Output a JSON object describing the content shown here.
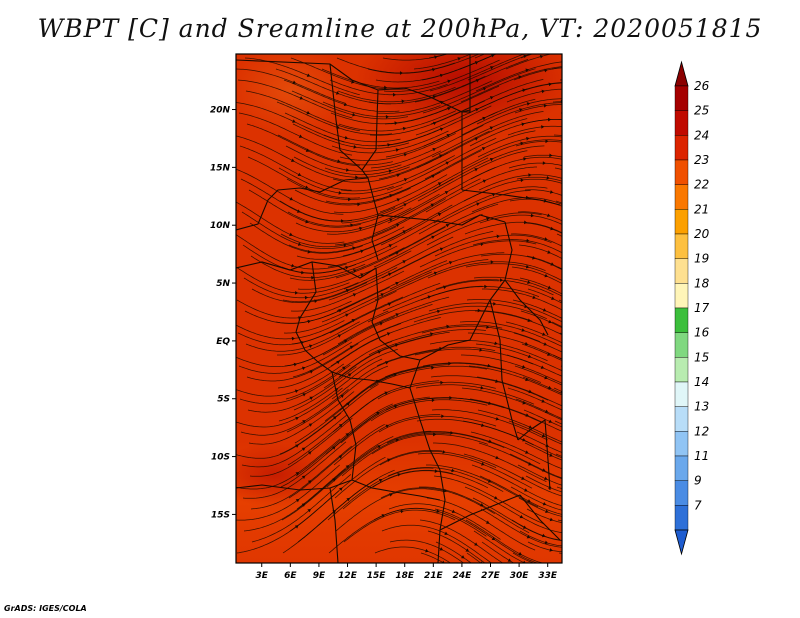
{
  "title": "WBPT [C] and Sreamline at 200hPa, VT: 2020051815",
  "footer": "GrADS: IGES/COLA",
  "axes": {
    "lon_labels": [
      "3E",
      "6E",
      "9E",
      "12E",
      "15E",
      "18E",
      "21E",
      "24E",
      "27E",
      "30E",
      "33E"
    ],
    "lon_values": [
      3,
      6,
      9,
      12,
      15,
      18,
      21,
      24,
      27,
      30,
      33
    ],
    "lat_labels": [
      "20N",
      "15N",
      "10N",
      "5N",
      "EQ",
      "5S",
      "10S",
      "15S"
    ],
    "lat_values": [
      20,
      15,
      10,
      5,
      0,
      -5,
      -10,
      -15
    ],
    "lon_range": [
      0.3,
      34.5
    ],
    "lat_range": [
      -19.2,
      24.8
    ]
  },
  "legend": {
    "labels": [
      "26",
      "25",
      "24",
      "23",
      "22",
      "21",
      "20",
      "19",
      "18",
      "17",
      "16",
      "15",
      "14",
      "13",
      "12",
      "11",
      "9",
      "7"
    ],
    "colors": [
      "#a50000",
      "#c00a00",
      "#dc2400",
      "#f05000",
      "#fa7800",
      "#fca000",
      "#fdc040",
      "#fee090",
      "#fff5b8",
      "#3cbf3c",
      "#80d880",
      "#b8ecb0",
      "#e0f6f8",
      "#b8ddf8",
      "#90c4f4",
      "#6aa8ec",
      "#4a8ce4",
      "#2e70d8"
    ],
    "top_color": "#8b0000",
    "bottom_color": "#1e5cd0"
  },
  "colors": {
    "field_base": "#dc3200",
    "streamline": "#1a0a00",
    "border": "#1a0a00"
  }
}
